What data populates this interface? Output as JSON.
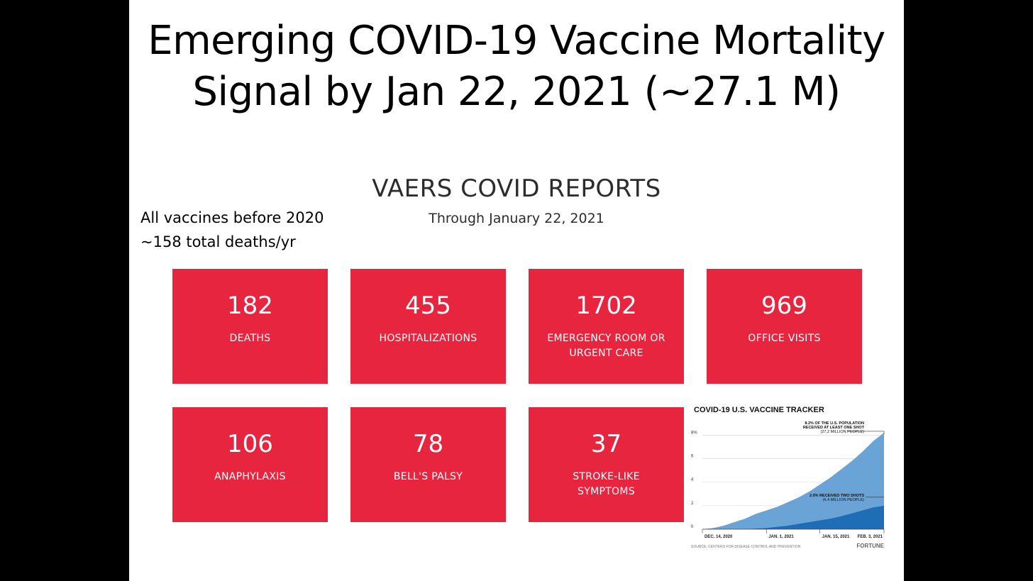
{
  "slide": {
    "title_line1": "Emerging COVID-19 Vaccine Mortality",
    "title_line2": "Signal by Jan 22, 2021 (~27.1 M)"
  },
  "reports": {
    "heading": "VAERS COVID REPORTS",
    "subheading": "Through January 22, 2021",
    "accent_color": "#e8253f",
    "cards": [
      {
        "value": "182",
        "label": "DEATHS"
      },
      {
        "value": "455",
        "label": "HOSPITALIZATIONS"
      },
      {
        "value": "1702",
        "label": "EMERGENCY ROOM OR URGENT CARE"
      },
      {
        "value": "969",
        "label": "OFFICE VISITS"
      },
      {
        "value": "106",
        "label": "ANAPHYLAXIS"
      },
      {
        "value": "78",
        "label": "BELL'S PALSY"
      },
      {
        "value": "37",
        "label": "STROKE-LIKE SYMPTOMS"
      }
    ]
  },
  "side_note": {
    "line1": "All vaccines before 2020",
    "line2": "~158 total deaths/yr"
  },
  "chart_data": {
    "type": "area",
    "title": "COVID-19 U.S. VACCINE TRACKER",
    "y_ticks": [
      "0",
      "2",
      "4",
      "6",
      "8%"
    ],
    "ylim": [
      0,
      8.8
    ],
    "x_tick_labels": [
      "DEC. 14, 2020",
      "JAN. 1, 2021",
      "JAN. 15, 2021",
      "FEB. 3, 2021"
    ],
    "x": [
      "2020-12-14",
      "2020-12-17",
      "2020-12-20",
      "2020-12-23",
      "2020-12-26",
      "2020-12-29",
      "2021-01-01",
      "2021-01-04",
      "2021-01-07",
      "2021-01-10",
      "2021-01-13",
      "2021-01-16",
      "2021-01-19",
      "2021-01-22",
      "2021-01-25",
      "2021-01-28",
      "2021-01-31",
      "2021-02-03"
    ],
    "series": [
      {
        "name": "RECEIVED AT LEAST ONE SHOT",
        "color": "#6aa3d5",
        "values": [
          0.0,
          0.1,
          0.3,
          0.6,
          0.9,
          1.3,
          1.6,
          1.9,
          2.3,
          2.7,
          3.2,
          3.8,
          4.4,
          5.1,
          5.8,
          6.6,
          7.5,
          8.2
        ]
      },
      {
        "name": "RECEIVED TWO SHOTS",
        "color": "#1f6db5",
        "values": [
          0.0,
          0.0,
          0.0,
          0.0,
          0.0,
          0.05,
          0.1,
          0.2,
          0.3,
          0.45,
          0.6,
          0.75,
          0.9,
          1.1,
          1.35,
          1.6,
          1.85,
          2.0
        ]
      }
    ],
    "annotations": [
      {
        "line1": "8.2% OF THE U.S. POPULATION",
        "line2": "RECEIVED AT LEAST ONE SHOT",
        "line3": "(27.2 MILLION PEOPLE)"
      },
      {
        "line1": "2.0% RECEIVED TWO SHOTS",
        "line2": "(6.4 MILLION PEOPLE)"
      }
    ],
    "source": "SOURCE: CENTERS FOR DISEASE CONTROL AND PREVENTION",
    "brand": "FORTUNE"
  }
}
